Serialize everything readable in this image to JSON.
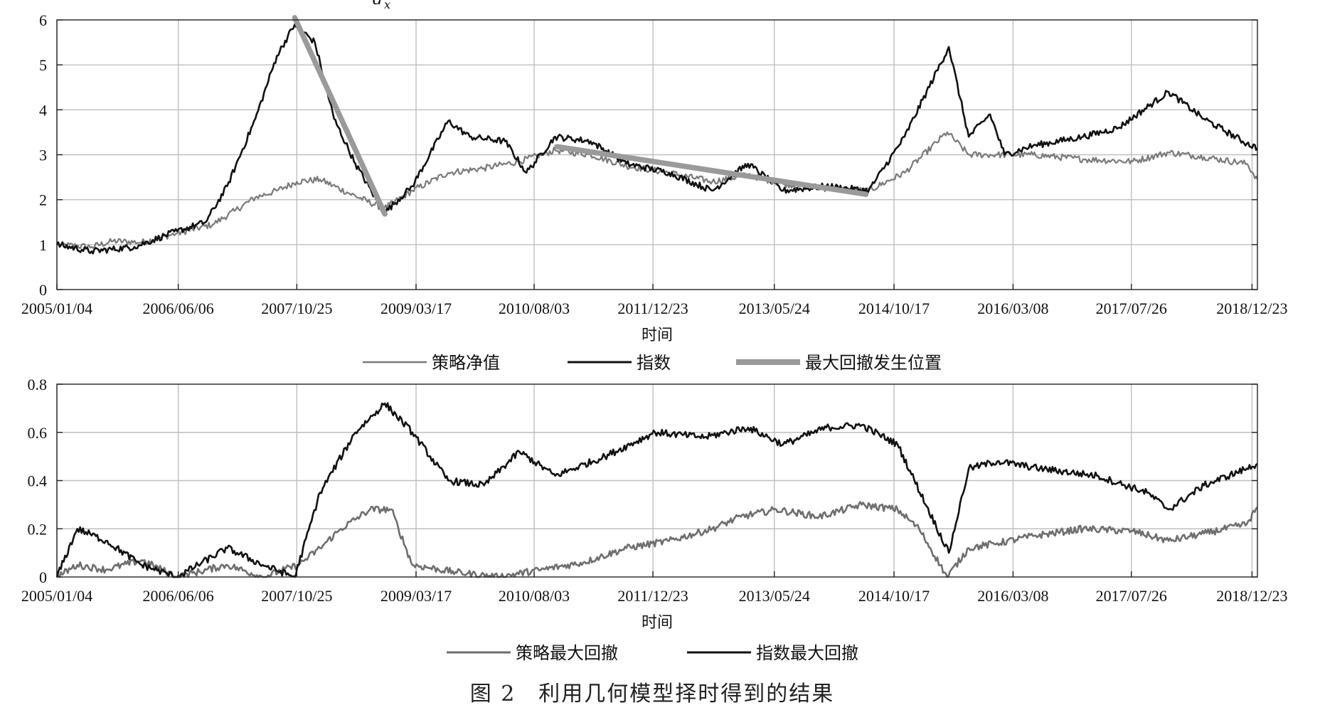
{
  "figure": {
    "caption": "图 2　利用几何模型择时得到的结果",
    "top_fragment": "d",
    "top_fragment_sub": "x"
  },
  "chart_data": [
    {
      "type": "line",
      "xlabel": "时间",
      "ylabel": "",
      "ylim": [
        0,
        6
      ],
      "yticks": [
        "0",
        "1",
        "2",
        "3",
        "4",
        "5",
        "6"
      ],
      "xlim": [
        "2005/01/04",
        "2019/01/15"
      ],
      "xticks": [
        "2005/01/04",
        "2006/06/06",
        "2007/10/25",
        "2009/03/17",
        "2010/08/03",
        "2011/12/23",
        "2013/05/24",
        "2014/10/17",
        "2016/03/08",
        "2017/07/26",
        "2018/12/23"
      ],
      "grid": true,
      "legend_position": "bottom",
      "series": [
        {
          "name": "策略净值",
          "color": "#7a7a7a",
          "style": "thin",
          "points": [
            [
              "2005/01/04",
              1.0
            ],
            [
              "2005/06/01",
              0.95
            ],
            [
              "2005/09/01",
              1.08
            ],
            [
              "2006/01/01",
              1.05
            ],
            [
              "2006/06/01",
              1.25
            ],
            [
              "2006/11/01",
              1.45
            ],
            [
              "2007/02/01",
              1.75
            ],
            [
              "2007/05/01",
              2.05
            ],
            [
              "2007/08/01",
              2.2
            ],
            [
              "2007/10/25",
              2.4
            ],
            [
              "2008/02/01",
              2.45
            ],
            [
              "2008/06/01",
              2.15
            ],
            [
              "2008/11/01",
              1.8
            ],
            [
              "2009/03/01",
              2.2
            ],
            [
              "2009/08/01",
              2.6
            ],
            [
              "2010/01/01",
              2.7
            ],
            [
              "2010/06/01",
              2.85
            ],
            [
              "2010/11/01",
              3.1
            ],
            [
              "2011/04/01",
              3.0
            ],
            [
              "2011/09/01",
              2.75
            ],
            [
              "2012/03/01",
              2.6
            ],
            [
              "2012/09/01",
              2.4
            ],
            [
              "2013/02/01",
              2.55
            ],
            [
              "2013/07/01",
              2.35
            ],
            [
              "2014/01/01",
              2.25
            ],
            [
              "2014/07/01",
              2.2
            ],
            [
              "2014/12/01",
              2.6
            ],
            [
              "2015/06/01",
              3.5
            ],
            [
              "2015/09/01",
              3.0
            ],
            [
              "2016/01/01",
              3.0
            ],
            [
              "2016/06/01",
              3.0
            ],
            [
              "2017/01/01",
              2.9
            ],
            [
              "2017/08/01",
              2.85
            ],
            [
              "2018/01/01",
              3.05
            ],
            [
              "2018/06/01",
              2.95
            ],
            [
              "2018/12/01",
              2.8
            ],
            [
              "2019/01/15",
              2.45
            ]
          ]
        },
        {
          "name": "指数",
          "color": "#111111",
          "style": "medium",
          "points": [
            [
              "2005/01/04",
              1.0
            ],
            [
              "2005/06/01",
              0.85
            ],
            [
              "2005/12/01",
              0.95
            ],
            [
              "2006/06/01",
              1.3
            ],
            [
              "2006/10/01",
              1.5
            ],
            [
              "2007/01/01",
              2.3
            ],
            [
              "2007/05/01",
              3.8
            ],
            [
              "2007/08/01",
              5.2
            ],
            [
              "2007/10/16",
              5.9
            ],
            [
              "2008/01/10",
              5.5
            ],
            [
              "2008/04/01",
              3.8
            ],
            [
              "2008/07/01",
              2.8
            ],
            [
              "2008/11/01",
              1.7
            ],
            [
              "2009/03/01",
              2.3
            ],
            [
              "2009/08/01",
              3.75
            ],
            [
              "2009/11/01",
              3.4
            ],
            [
              "2010/04/01",
              3.3
            ],
            [
              "2010/07/01",
              2.6
            ],
            [
              "2010/11/01",
              3.4
            ],
            [
              "2011/04/01",
              3.3
            ],
            [
              "2011/09/01",
              2.8
            ],
            [
              "2012/03/01",
              2.6
            ],
            [
              "2012/09/01",
              2.2
            ],
            [
              "2013/02/01",
              2.8
            ],
            [
              "2013/07/01",
              2.2
            ],
            [
              "2014/01/01",
              2.3
            ],
            [
              "2014/07/01",
              2.2
            ],
            [
              "2014/12/01",
              3.4
            ],
            [
              "2015/06/08",
              5.4
            ],
            [
              "2015/09/01",
              3.4
            ],
            [
              "2015/12/01",
              3.9
            ],
            [
              "2016/02/01",
              3.0
            ],
            [
              "2016/06/01",
              3.2
            ],
            [
              "2017/01/01",
              3.4
            ],
            [
              "2017/06/01",
              3.6
            ],
            [
              "2018/01/01",
              4.4
            ],
            [
              "2018/06/01",
              3.8
            ],
            [
              "2018/12/01",
              3.25
            ],
            [
              "2019/01/15",
              3.15
            ]
          ]
        },
        {
          "name": "最大回撤发生位置",
          "color": "#9a9a9a",
          "style": "thick",
          "segments": [
            [
              [
                "2007/10/16",
                6.05
              ],
              [
                "2008/11/04",
                1.68
              ]
            ],
            [
              [
                "2010/11/08",
                3.18
              ],
              [
                "2014/06/19",
                2.12
              ]
            ]
          ]
        }
      ]
    },
    {
      "type": "line",
      "xlabel": "时间",
      "ylabel": "",
      "ylim": [
        0,
        0.8
      ],
      "yticks": [
        "0",
        "0.2",
        "0.4",
        "0.6",
        "0.8"
      ],
      "xlim": [
        "2005/01/04",
        "2019/01/15"
      ],
      "xticks": [
        "2005/01/04",
        "2006/06/06",
        "2007/10/25",
        "2009/03/17",
        "2010/08/03",
        "2011/12/23",
        "2013/05/24",
        "2014/10/17",
        "2016/03/08",
        "2017/07/26",
        "2018/12/23"
      ],
      "grid": true,
      "legend_position": "bottom",
      "series": [
        {
          "name": "策略最大回撤",
          "color": "#6e6e6e",
          "style": "medium",
          "points": [
            [
              "2005/01/04",
              0.0
            ],
            [
              "2005/04/01",
              0.05
            ],
            [
              "2005/08/01",
              0.03
            ],
            [
              "2006/01/01",
              0.07
            ],
            [
              "2006/06/01",
              0.0
            ],
            [
              "2007/01/01",
              0.05
            ],
            [
              "2007/06/01",
              0.0
            ],
            [
              "2007/11/01",
              0.05
            ],
            [
              "2008/02/01",
              0.12
            ],
            [
              "2008/05/01",
              0.2
            ],
            [
              "2008/09/01",
              0.28
            ],
            [
              "2008/12/01",
              0.28
            ],
            [
              "2009/03/01",
              0.05
            ],
            [
              "2009/09/01",
              0.02
            ],
            [
              "2010/03/01",
              0.0
            ],
            [
              "2010/09/01",
              0.03
            ],
            [
              "2011/03/01",
              0.06
            ],
            [
              "2011/09/01",
              0.12
            ],
            [
              "2012/03/01",
              0.15
            ],
            [
              "2012/09/01",
              0.2
            ],
            [
              "2013/01/01",
              0.25
            ],
            [
              "2013/06/01",
              0.28
            ],
            [
              "2013/12/01",
              0.25
            ],
            [
              "2014/06/01",
              0.3
            ],
            [
              "2014/11/01",
              0.28
            ],
            [
              "2015/02/01",
              0.2
            ],
            [
              "2015/06/01",
              0.0
            ],
            [
              "2015/09/01",
              0.12
            ],
            [
              "2016/01/01",
              0.14
            ],
            [
              "2016/06/01",
              0.17
            ],
            [
              "2017/01/01",
              0.2
            ],
            [
              "2017/08/01",
              0.19
            ],
            [
              "2018/01/01",
              0.15
            ],
            [
              "2018/06/01",
              0.18
            ],
            [
              "2018/12/01",
              0.22
            ],
            [
              "2019/01/15",
              0.29
            ]
          ]
        },
        {
          "name": "指数最大回撤",
          "color": "#111111",
          "style": "medium",
          "points": [
            [
              "2005/01/04",
              0.0
            ],
            [
              "2005/04/01",
              0.2
            ],
            [
              "2005/08/01",
              0.15
            ],
            [
              "2006/01/01",
              0.05
            ],
            [
              "2006/06/01",
              0.0
            ],
            [
              "2007/01/01",
              0.12
            ],
            [
              "2007/06/01",
              0.05
            ],
            [
              "2007/10/16",
              0.0
            ],
            [
              "2008/02/01",
              0.35
            ],
            [
              "2008/07/01",
              0.6
            ],
            [
              "2008/11/04",
              0.72
            ],
            [
              "2009/03/01",
              0.6
            ],
            [
              "2009/08/01",
              0.4
            ],
            [
              "2010/01/01",
              0.38
            ],
            [
              "2010/06/01",
              0.52
            ],
            [
              "2010/11/01",
              0.42
            ],
            [
              "2011/06/01",
              0.5
            ],
            [
              "2012/01/01",
              0.6
            ],
            [
              "2012/08/01",
              0.58
            ],
            [
              "2013/02/01",
              0.62
            ],
            [
              "2013/07/01",
              0.55
            ],
            [
              "2014/01/01",
              0.62
            ],
            [
              "2014/06/01",
              0.63
            ],
            [
              "2014/11/01",
              0.55
            ],
            [
              "2015/06/08",
              0.1
            ],
            [
              "2015/09/01",
              0.45
            ],
            [
              "2016/01/01",
              0.48
            ],
            [
              "2016/07/01",
              0.45
            ],
            [
              "2017/03/01",
              0.42
            ],
            [
              "2017/10/01",
              0.35
            ],
            [
              "2018/01/01",
              0.28
            ],
            [
              "2018/06/01",
              0.38
            ],
            [
              "2018/12/01",
              0.45
            ],
            [
              "2019/01/15",
              0.47
            ]
          ]
        }
      ]
    }
  ]
}
